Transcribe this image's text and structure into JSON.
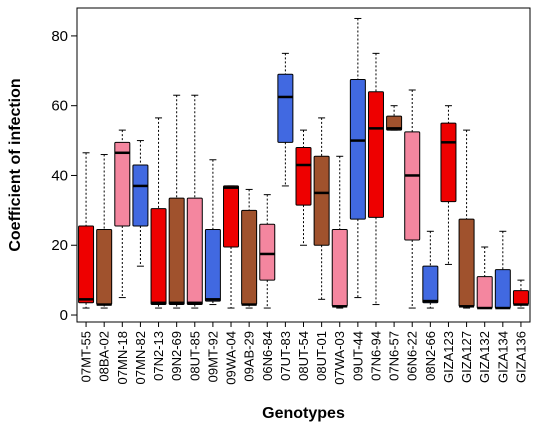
{
  "chart_data": {
    "type": "boxplot",
    "xlabel": "Genotypes",
    "ylabel": "Coefficient of infection",
    "ylim": [
      -2,
      88
    ],
    "yticks": [
      0,
      20,
      40,
      60,
      80
    ],
    "colors": {
      "red": "#ee0000",
      "brown": "#a0522d",
      "pink": "#f4869f",
      "blue": "#4169e1"
    },
    "series": [
      {
        "name": "07MT-55",
        "color": "red",
        "min": 2,
        "q1": 3.5,
        "median": 4.5,
        "q3": 25.5,
        "max": 46.5
      },
      {
        "name": "08BA-02",
        "color": "brown",
        "min": 2,
        "q1": 3,
        "median": 3,
        "q3": 24.5,
        "max": 46
      },
      {
        "name": "07MN-18",
        "color": "pink",
        "min": 5,
        "q1": 25.5,
        "median": 46.5,
        "q3": 49.5,
        "max": 53
      },
      {
        "name": "07MN-82",
        "color": "blue",
        "min": 14,
        "q1": 25.5,
        "median": 37,
        "q3": 43,
        "max": 50
      },
      {
        "name": "07N2-13",
        "color": "red",
        "min": 2,
        "q1": 3,
        "median": 3.5,
        "q3": 30.5,
        "max": 56.5
      },
      {
        "name": "09N2-69",
        "color": "brown",
        "min": 2,
        "q1": 3,
        "median": 3.5,
        "q3": 33.5,
        "max": 63
      },
      {
        "name": "08UT-85",
        "color": "pink",
        "min": 2,
        "q1": 3,
        "median": 3.5,
        "q3": 33.5,
        "max": 63
      },
      {
        "name": "09MT-92",
        "color": "blue",
        "min": 3,
        "q1": 4,
        "median": 4.5,
        "q3": 24.5,
        "max": 44.5
      },
      {
        "name": "09WA-04",
        "color": "red",
        "min": 2,
        "q1": 19.5,
        "median": 36.5,
        "q3": 37,
        "max": 37
      },
      {
        "name": "09AB-29",
        "color": "brown",
        "min": 2,
        "q1": 3,
        "median": 3,
        "q3": 30,
        "max": 36
      },
      {
        "name": "06N6-84",
        "color": "pink",
        "min": 2,
        "q1": 10,
        "median": 17.5,
        "q3": 26,
        "max": 34.5
      },
      {
        "name": "07UT-83",
        "color": "blue",
        "min": 37,
        "q1": 49.5,
        "median": 62.5,
        "q3": 69,
        "max": 75
      },
      {
        "name": "08UT-54",
        "color": "red",
        "min": 20,
        "q1": 31.5,
        "median": 43,
        "q3": 48,
        "max": 53
      },
      {
        "name": "08UT-01",
        "color": "brown",
        "min": 4.5,
        "q1": 20,
        "median": 35,
        "q3": 45.5,
        "max": 56.5
      },
      {
        "name": "07WA-03",
        "color": "pink",
        "min": 2,
        "q1": 2.5,
        "median": 2.5,
        "q3": 24.5,
        "max": 45.5
      },
      {
        "name": "09UT-44",
        "color": "blue",
        "min": 5,
        "q1": 27.5,
        "median": 50,
        "q3": 67.5,
        "max": 85
      },
      {
        "name": "07N6-94",
        "color": "red",
        "min": 3,
        "q1": 28,
        "median": 53.5,
        "q3": 64,
        "max": 75
      },
      {
        "name": "07N6-57",
        "color": "brown",
        "min": 53,
        "q1": 53,
        "median": 53.5,
        "q3": 57,
        "max": 60
      },
      {
        "name": "06N6-22",
        "color": "pink",
        "min": 2,
        "q1": 21.5,
        "median": 40,
        "q3": 52.5,
        "max": 64.5
      },
      {
        "name": "08N2-66",
        "color": "blue",
        "min": 2,
        "q1": 3.5,
        "median": 4,
        "q3": 14,
        "max": 24
      },
      {
        "name": "GIZA123",
        "color": "red",
        "min": 14.5,
        "q1": 32.5,
        "median": 49.5,
        "q3": 55,
        "max": 60
      },
      {
        "name": "GIZA127",
        "color": "brown",
        "min": 2,
        "q1": 2.5,
        "median": 2.5,
        "q3": 27.5,
        "max": 53
      },
      {
        "name": "GIZA132",
        "color": "pink",
        "min": 2,
        "q1": 2,
        "median": 2,
        "q3": 11,
        "max": 19.5
      },
      {
        "name": "GIZA134",
        "color": "blue",
        "min": 2,
        "q1": 2,
        "median": 2,
        "q3": 13,
        "max": 24
      },
      {
        "name": "GIZA136",
        "color": "red",
        "min": 2,
        "q1": 3,
        "median": 3,
        "q3": 7,
        "max": 10
      }
    ]
  }
}
